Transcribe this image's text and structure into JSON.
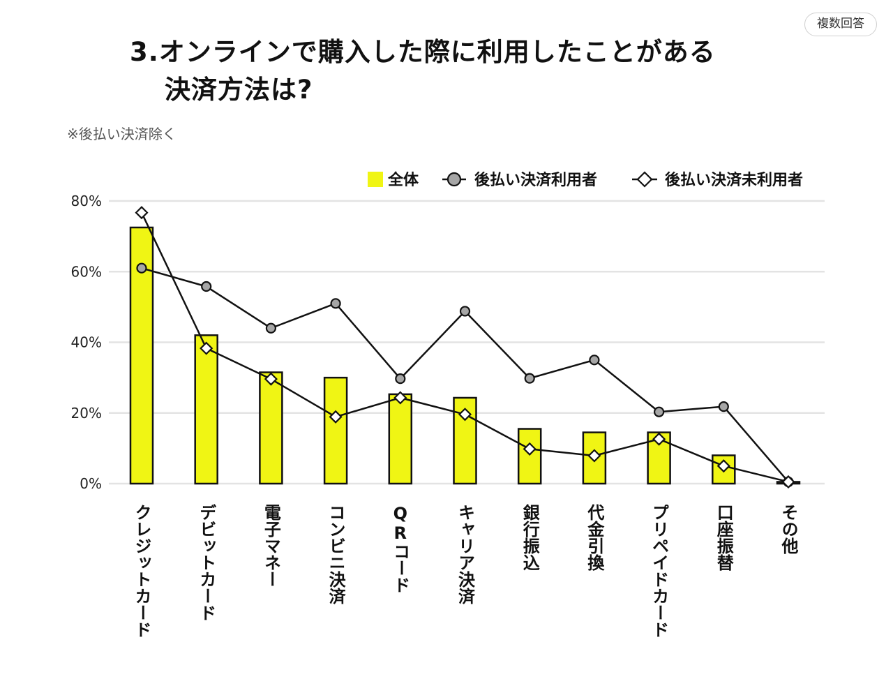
{
  "badge": "複数回答",
  "title": {
    "line1": "3.オンラインで購入した際に利用したことがある",
    "line2": "決済方法は?"
  },
  "note": "※後払い決済除く",
  "chart_data": {
    "type": "bar",
    "categories": [
      "クレジットカード",
      "デビットカード",
      "電子マネー",
      "コンビニ決済",
      "QRコード",
      "キャリア決済",
      "銀行振込",
      "代金引換",
      "プリペイドカード",
      "口座振替",
      "その他"
    ],
    "ylim": [
      0,
      80
    ],
    "yticks": [
      0,
      20,
      40,
      60,
      80
    ],
    "ytick_suffix": "%",
    "grid": true,
    "legend_position": "top-right",
    "series": [
      {
        "name": "全体",
        "type": "bar",
        "color": "#f0f514",
        "values": [
          72.5,
          42,
          31.5,
          30,
          25.3,
          24.3,
          15.5,
          14.5,
          14.5,
          8,
          0.5
        ]
      },
      {
        "name": "後払い決済利用者",
        "type": "line",
        "marker": "circle",
        "color": "#a6a6a6",
        "values": [
          61,
          55.8,
          44,
          51,
          29.7,
          48.8,
          29.8,
          35,
          20.3,
          21.8,
          0.5
        ]
      },
      {
        "name": "後払い決済未利用者",
        "type": "line",
        "marker": "diamond",
        "color": "#ffffff",
        "values": [
          76.7,
          38.3,
          29.6,
          18.9,
          24.3,
          19.6,
          9.8,
          7.9,
          12.6,
          5,
          0.5
        ]
      }
    ]
  }
}
